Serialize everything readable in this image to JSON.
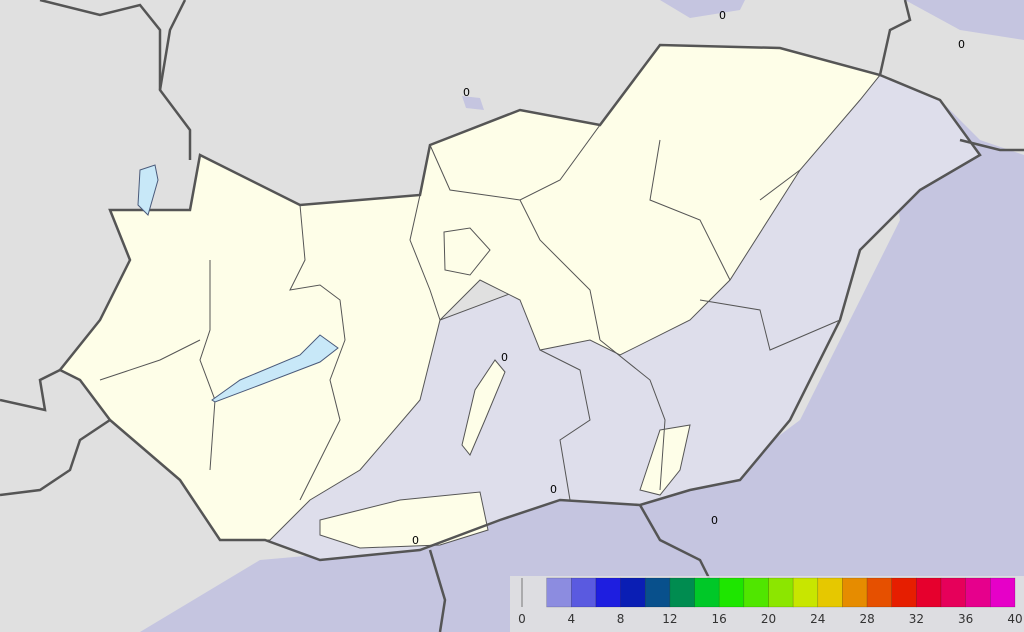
{
  "contour_labels": [
    "0",
    "0",
    "0",
    "0",
    "0",
    "0",
    "0"
  ],
  "colorbar": {
    "ticks": [
      "0",
      "4",
      "8",
      "12",
      "16",
      "20",
      "24",
      "28",
      "32",
      "36",
      "40"
    ],
    "min": 0,
    "max": 40,
    "step": 2,
    "colors": [
      "#8c8ce0",
      "#5a5ae0",
      "#1e1ee0",
      "#0a1eb4",
      "#08508c",
      "#008c50",
      "#00c828",
      "#1ee600",
      "#50e600",
      "#8ce600",
      "#c8e600",
      "#e6c800",
      "#e68c00",
      "#e65000",
      "#e61e00",
      "#e6002d",
      "#e6005a",
      "#e6008c",
      "#e600c8"
    ]
  },
  "colors": {
    "background": "#e0e0e0",
    "lavender": "#c5c5e0",
    "light_lavender": "#dedeeb",
    "zero_area": "#fefee8",
    "lake": "#c8e8f8"
  }
}
